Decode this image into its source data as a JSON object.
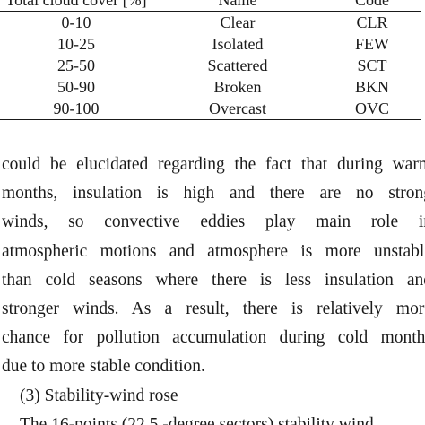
{
  "table": {
    "headers": [
      "Total cloud cover [%]",
      "Name",
      "Code"
    ],
    "rows": [
      {
        "cover": "0-10",
        "name": "Clear",
        "code": "CLR"
      },
      {
        "cover": "10-25",
        "name": "Isolated",
        "code": "FEW"
      },
      {
        "cover": "25-50",
        "name": "Scattered",
        "code": "SCT"
      },
      {
        "cover": "50-90",
        "name": "Broken",
        "code": "BKN"
      },
      {
        "cover": "90-100",
        "name": "Overcast",
        "code": "OVC"
      }
    ]
  },
  "paragraph": {
    "lines": [
      "could be elucidated regarding the fact that during warm",
      "months, insulation is high and there are no strong",
      "winds, so convective eddies play main role in",
      "atmospheric motions and atmosphere is more unstable",
      "than cold seasons where there is less insulation and",
      "stronger winds. As a result, there is relatively more",
      "chance for pollution accumulation during cold months",
      "due to more stable condition."
    ]
  },
  "section_heading": "(3) Stability-wind rose",
  "next_line": "The 16-points (22.5 -degree sectors) stability wind"
}
